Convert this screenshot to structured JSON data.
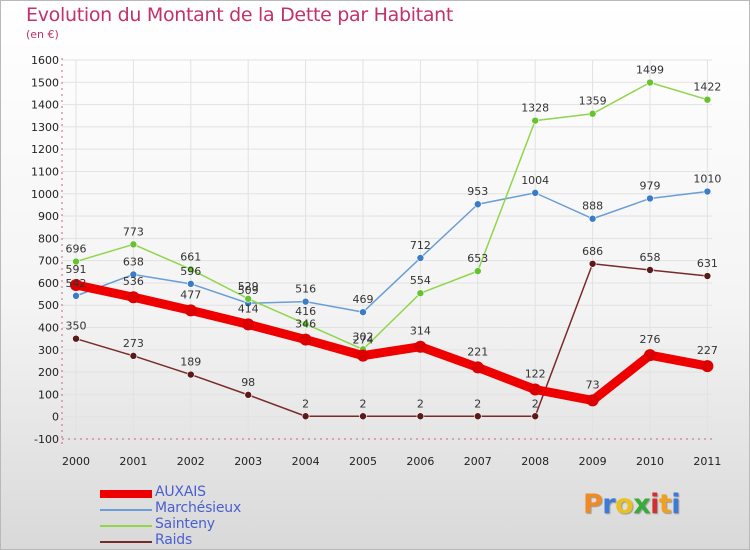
{
  "title": "Evolution du Montant de la Dette par Habitant",
  "unit": "(en €)",
  "logo": {
    "letters": [
      "P",
      "r",
      "o",
      "x",
      "i",
      "t",
      "i"
    ],
    "colors": [
      "#f08a24",
      "#3d7ad6",
      "#e8c020",
      "#3aaa3a",
      "#d03030",
      "#f0a020",
      "#3d7ad6"
    ]
  },
  "chart_data": {
    "type": "line",
    "title": "Evolution du Montant de la Dette par Habitant",
    "ylabel": "(en €)",
    "categories": [
      "2000",
      "2001",
      "2002",
      "2003",
      "2004",
      "2005",
      "2006",
      "2007",
      "2008",
      "2009",
      "2010",
      "2011"
    ],
    "y_ticks": [
      "-100",
      "0",
      "100",
      "200",
      "300",
      "400",
      "500",
      "600",
      "700",
      "800",
      "900",
      "1000",
      "1100",
      "1200",
      "1300",
      "1400",
      "1500",
      "1600"
    ],
    "ylim": [
      -100,
      1600
    ],
    "series": [
      {
        "name": "AUXAIS",
        "color": "#ee0000",
        "marker": "#dd0000",
        "width": 9,
        "radius": 6,
        "values": [
          591,
          536,
          477,
          414,
          346,
          274,
          314,
          221,
          122,
          73,
          276,
          227
        ],
        "labels": [
          "591",
          "536",
          "477",
          "414",
          "346",
          "274",
          "314",
          "221",
          "122",
          "73",
          "276",
          "227"
        ]
      },
      {
        "name": "Marchésieux",
        "color": "#6a9ed6",
        "marker": "#3b7cc7",
        "width": 1.5,
        "radius": 3.5,
        "values": [
          542,
          638,
          596,
          509,
          516,
          469,
          712,
          953,
          1004,
          888,
          979,
          1010
        ],
        "labels": [
          "542",
          "638",
          "596",
          "509",
          "516",
          "469",
          "712",
          "953",
          "1004",
          "888",
          "979",
          "1010"
        ]
      },
      {
        "name": "Sainteny",
        "color": "#8fd64a",
        "marker": "#66c22e",
        "width": 1.5,
        "radius": 3.5,
        "values": [
          696,
          773,
          661,
          529,
          416,
          302,
          554,
          653,
          1328,
          1359,
          1499,
          1422
        ],
        "labels": [
          "696",
          "773",
          "661",
          "529",
          "416",
          "302",
          "554",
          "653",
          "1328",
          "1359",
          "1499",
          "1422"
        ]
      },
      {
        "name": "Raids",
        "color": "#7a2a2a",
        "marker": "#5a1a1a",
        "width": 1.5,
        "radius": 3.5,
        "values": [
          350,
          273,
          189,
          98,
          2,
          2,
          2,
          2,
          2,
          686,
          658,
          631
        ],
        "labels": [
          "350",
          "273",
          "189",
          "98",
          "2",
          "2",
          "2",
          "2",
          "2",
          "686",
          "658",
          "631"
        ]
      }
    ],
    "legend": [
      "AUXAIS",
      "Marchésieux",
      "Sainteny",
      "Raids"
    ],
    "legend_position": "bottom-left",
    "grid": true
  }
}
